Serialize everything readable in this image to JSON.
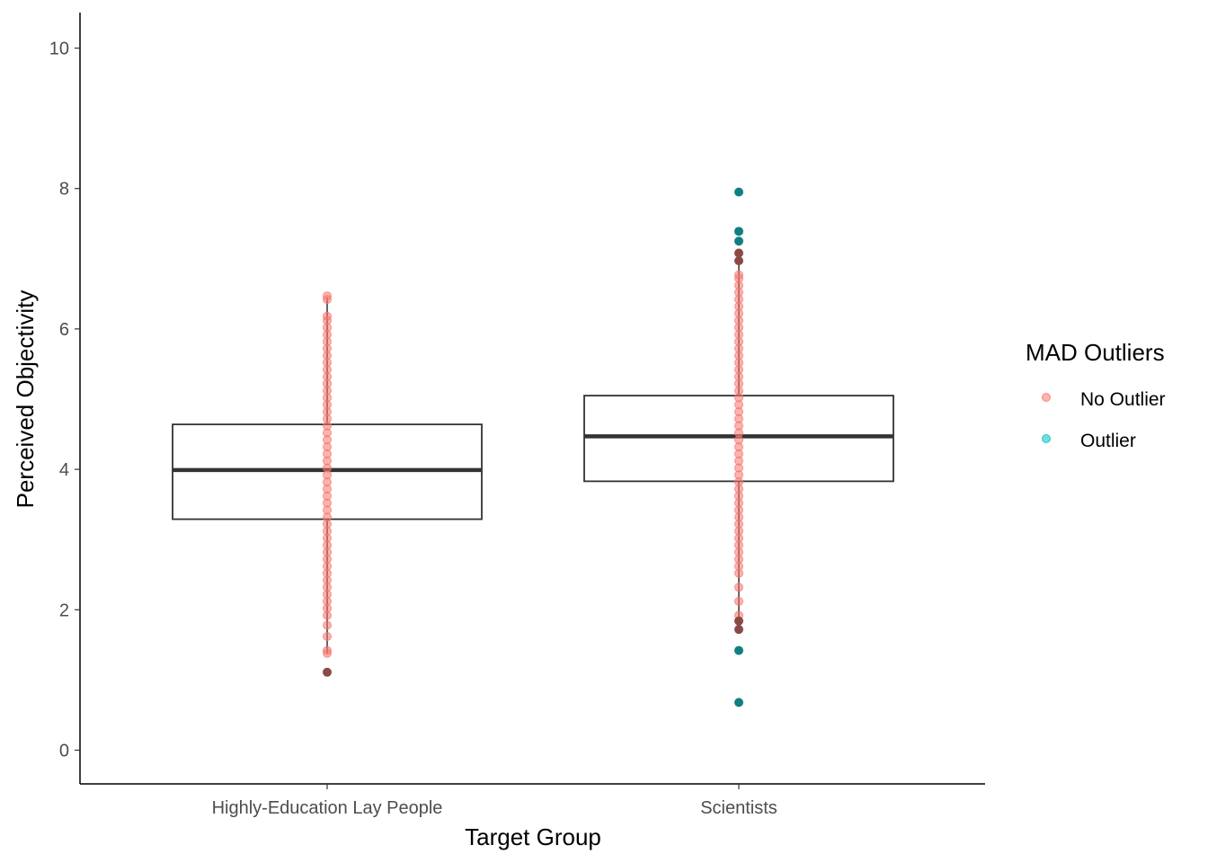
{
  "chart_data": {
    "type": "boxplot",
    "xlabel": "Target Group",
    "ylabel": "Perceived Objectivity",
    "ylim": [
      -0.5,
      10.5
    ],
    "yticks": [
      0,
      2,
      4,
      6,
      8,
      10
    ],
    "categories": [
      "Highly-Education Lay People",
      "Scientists"
    ],
    "boxes": [
      {
        "category": "Highly-Education Lay People",
        "q1": 3.29,
        "median": 3.99,
        "q3": 4.64,
        "whisker_low": 1.38,
        "whisker_high": 6.45
      },
      {
        "category": "Scientists",
        "q1": 3.83,
        "median": 4.47,
        "q3": 5.05,
        "whisker_low": 1.72,
        "whisker_high": 7.08
      }
    ],
    "points": [
      {
        "category": "Highly-Education Lay People",
        "group": "No Outlier",
        "y": [
          1.38,
          1.42,
          1.62,
          1.78,
          1.92,
          2.02,
          2.12,
          2.22,
          2.32,
          2.42,
          2.52,
          2.62,
          2.72,
          2.82,
          2.92,
          3.02,
          3.12,
          3.22,
          3.32,
          3.42,
          3.52,
          3.62,
          3.72,
          3.82,
          3.92,
          4.02,
          4.12,
          4.22,
          4.32,
          4.42,
          4.52,
          4.62,
          4.72,
          4.82,
          4.92,
          5.02,
          5.12,
          5.22,
          5.32,
          5.42,
          5.52,
          5.62,
          5.72,
          5.82,
          5.92,
          6.02,
          6.12,
          6.18,
          6.42,
          6.47
        ]
      },
      {
        "category": "Highly-Education Lay People",
        "group": "Boxplot Outlier",
        "y": [
          1.11
        ]
      },
      {
        "category": "Scientists",
        "group": "No Outlier",
        "y": [
          1.92,
          2.12,
          2.32,
          2.52,
          2.62,
          2.72,
          2.82,
          2.92,
          3.02,
          3.12,
          3.22,
          3.32,
          3.42,
          3.52,
          3.62,
          3.72,
          3.82,
          3.92,
          4.02,
          4.12,
          4.22,
          4.32,
          4.42,
          4.52,
          4.62,
          4.72,
          4.82,
          4.92,
          5.02,
          5.12,
          5.22,
          5.32,
          5.42,
          5.52,
          5.62,
          5.72,
          5.82,
          5.92,
          6.02,
          6.12,
          6.22,
          6.32,
          6.42,
          6.52,
          6.62,
          6.72,
          6.77
        ]
      },
      {
        "category": "Scientists",
        "group": "Boxplot Outlier",
        "y": [
          1.72,
          1.84,
          6.97,
          7.08
        ]
      },
      {
        "category": "Scientists",
        "group": "Outlier",
        "y": [
          0.68,
          1.42,
          7.25,
          7.39,
          7.95
        ]
      }
    ],
    "legend": {
      "title": "MAD Outliers",
      "placement": "right",
      "items": [
        {
          "label": "No Outlier",
          "color": "#F8766D"
        },
        {
          "label": "Outlier",
          "color": "#00BFC4"
        }
      ]
    },
    "colors": {
      "no_outlier": "#F8766D",
      "outlier_point": "#0F7F82",
      "outlier_legend": "#00BFC4",
      "boxplot_outlier": "#8B4A47",
      "box_line": "#333333"
    }
  }
}
